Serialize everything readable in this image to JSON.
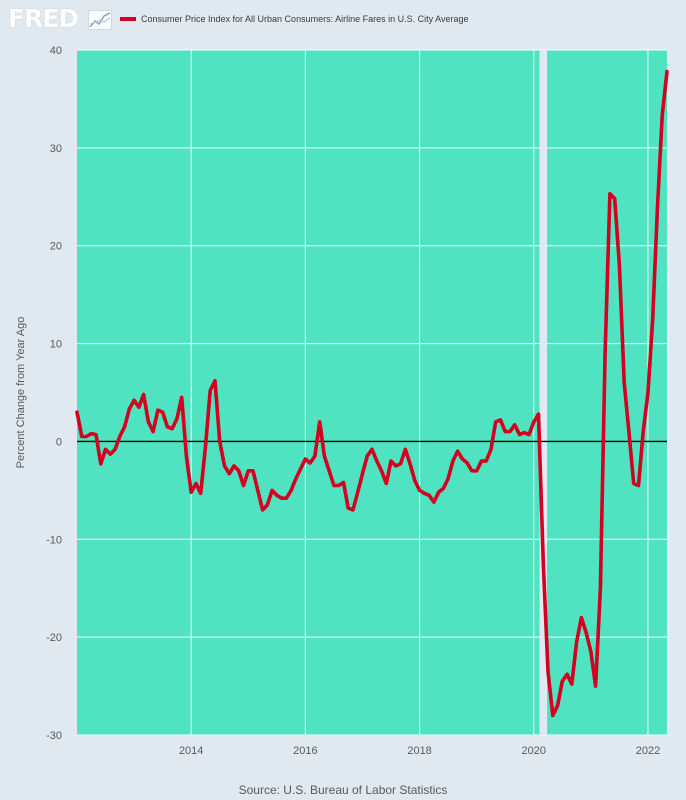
{
  "header": {
    "logo_text": "FRED",
    "logo_mark": "chart-line-icon"
  },
  "legend": {
    "label": "Consumer Price Index for All Urban Consumers: Airline Fares in U.S. City Average",
    "color": "#d3001f"
  },
  "source": "Source: U.S. Bureau of Labor Statistics",
  "colors": {
    "plot_background": "#50e3c2",
    "recession_band": "#e1e9f0",
    "page_background": "#e1e9f0",
    "series": "#d3001f",
    "zero_line": "#000000",
    "gridline": "#ffffff",
    "axis_text": "#595959"
  },
  "chart_data": {
    "type": "line",
    "title": "",
    "xlabel": "",
    "ylabel": "Percent Change from Year Ago",
    "ylim": [
      -30,
      40
    ],
    "xlim": [
      "2012-01",
      "2022-05"
    ],
    "x_ticks": [
      "2014",
      "2016",
      "2018",
      "2020",
      "2022"
    ],
    "y_ticks": [
      "40",
      "30",
      "20",
      "10",
      "0",
      "-10",
      "-20",
      "-30"
    ],
    "grid": true,
    "legend_position": "top",
    "shaded_periods": [
      {
        "start": "2020-02",
        "end": "2020-04",
        "label": "recession"
      }
    ],
    "reference_lines": [
      {
        "axis": "y",
        "value": 0
      }
    ],
    "series": [
      {
        "name": "Consumer Price Index for All Urban Consumers: Airline Fares in U.S. City Average",
        "color": "#d3001f",
        "points": [
          [
            "2012-01",
            3.0
          ],
          [
            "2012-02",
            0.5
          ],
          [
            "2012-03",
            0.5
          ],
          [
            "2012-04",
            0.8
          ],
          [
            "2012-05",
            0.7
          ],
          [
            "2012-06",
            -2.3
          ],
          [
            "2012-07",
            -0.8
          ],
          [
            "2012-08",
            -1.3
          ],
          [
            "2012-09",
            -0.8
          ],
          [
            "2012-10",
            0.5
          ],
          [
            "2012-11",
            1.5
          ],
          [
            "2012-12",
            3.3
          ],
          [
            "2013-01",
            4.2
          ],
          [
            "2013-02",
            3.5
          ],
          [
            "2013-03",
            4.8
          ],
          [
            "2013-04",
            2.0
          ],
          [
            "2013-05",
            1.0
          ],
          [
            "2013-06",
            3.2
          ],
          [
            "2013-07",
            3.0
          ],
          [
            "2013-08",
            1.5
          ],
          [
            "2013-09",
            1.3
          ],
          [
            "2013-10",
            2.3
          ],
          [
            "2013-11",
            4.5
          ],
          [
            "2013-12",
            -1.5
          ],
          [
            "2014-01",
            -5.2
          ],
          [
            "2014-02",
            -4.3
          ],
          [
            "2014-03",
            -5.3
          ],
          [
            "2014-04",
            -0.5
          ],
          [
            "2014-05",
            5.2
          ],
          [
            "2014-06",
            6.2
          ],
          [
            "2014-07",
            0.0
          ],
          [
            "2014-08",
            -2.5
          ],
          [
            "2014-09",
            -3.3
          ],
          [
            "2014-10",
            -2.5
          ],
          [
            "2014-11",
            -3.0
          ],
          [
            "2014-12",
            -4.5
          ],
          [
            "2015-01",
            -3.0
          ],
          [
            "2015-02",
            -3.0
          ],
          [
            "2015-03",
            -5.0
          ],
          [
            "2015-04",
            -7.0
          ],
          [
            "2015-05",
            -6.5
          ],
          [
            "2015-06",
            -5.0
          ],
          [
            "2015-07",
            -5.5
          ],
          [
            "2015-08",
            -5.8
          ],
          [
            "2015-09",
            -5.8
          ],
          [
            "2015-10",
            -5.0
          ],
          [
            "2015-11",
            -3.8
          ],
          [
            "2015-12",
            -2.8
          ],
          [
            "2016-01",
            -1.8
          ],
          [
            "2016-02",
            -2.2
          ],
          [
            "2016-03",
            -1.5
          ],
          [
            "2016-04",
            2.0
          ],
          [
            "2016-05",
            -1.5
          ],
          [
            "2016-06",
            -3.0
          ],
          [
            "2016-07",
            -4.5
          ],
          [
            "2016-08",
            -4.5
          ],
          [
            "2016-09",
            -4.2
          ],
          [
            "2016-10",
            -6.8
          ],
          [
            "2016-11",
            -7.0
          ],
          [
            "2016-12",
            -5.2
          ],
          [
            "2017-01",
            -3.3
          ],
          [
            "2017-02",
            -1.5
          ],
          [
            "2017-03",
            -0.8
          ],
          [
            "2017-04",
            -2.0
          ],
          [
            "2017-05",
            -3.0
          ],
          [
            "2017-06",
            -4.3
          ],
          [
            "2017-07",
            -2.0
          ],
          [
            "2017-08",
            -2.5
          ],
          [
            "2017-09",
            -2.3
          ],
          [
            "2017-10",
            -0.8
          ],
          [
            "2017-11",
            -2.3
          ],
          [
            "2017-12",
            -4.0
          ],
          [
            "2018-01",
            -5.0
          ],
          [
            "2018-02",
            -5.3
          ],
          [
            "2018-03",
            -5.5
          ],
          [
            "2018-04",
            -6.2
          ],
          [
            "2018-05",
            -5.2
          ],
          [
            "2018-06",
            -4.8
          ],
          [
            "2018-07",
            -3.8
          ],
          [
            "2018-08",
            -2.0
          ],
          [
            "2018-09",
            -1.0
          ],
          [
            "2018-10",
            -1.8
          ],
          [
            "2018-11",
            -2.2
          ],
          [
            "2018-12",
            -3.0
          ],
          [
            "2019-01",
            -3.0
          ],
          [
            "2019-02",
            -2.0
          ],
          [
            "2019-03",
            -2.0
          ],
          [
            "2019-04",
            -0.8
          ],
          [
            "2019-05",
            2.0
          ],
          [
            "2019-06",
            2.2
          ],
          [
            "2019-07",
            1.0
          ],
          [
            "2019-08",
            1.0
          ],
          [
            "2019-09",
            1.7
          ],
          [
            "2019-10",
            0.7
          ],
          [
            "2019-11",
            0.9
          ],
          [
            "2019-12",
            0.7
          ],
          [
            "2020-01",
            2.0
          ],
          [
            "2020-02",
            2.8
          ],
          [
            "2020-03",
            -12.5
          ],
          [
            "2020-04",
            -23.5
          ],
          [
            "2020-05",
            -28.0
          ],
          [
            "2020-06",
            -27.0
          ],
          [
            "2020-07",
            -24.5
          ],
          [
            "2020-08",
            -23.8
          ],
          [
            "2020-09",
            -24.8
          ],
          [
            "2020-10",
            -20.5
          ],
          [
            "2020-11",
            -18.0
          ],
          [
            "2020-12",
            -19.5
          ],
          [
            "2021-01",
            -21.5
          ],
          [
            "2021-02",
            -25.0
          ],
          [
            "2021-03",
            -15.0
          ],
          [
            "2021-04",
            9.0
          ],
          [
            "2021-05",
            25.3
          ],
          [
            "2021-06",
            24.8
          ],
          [
            "2021-07",
            18.0
          ],
          [
            "2021-08",
            6.0
          ],
          [
            "2021-09",
            1.0
          ],
          [
            "2021-10",
            -4.3
          ],
          [
            "2021-11",
            -4.5
          ],
          [
            "2021-12",
            1.0
          ],
          [
            "2022-01",
            5.0
          ],
          [
            "2022-02",
            12.5
          ],
          [
            "2022-03",
            24.0
          ],
          [
            "2022-04",
            33.3
          ],
          [
            "2022-05",
            37.8
          ]
        ]
      }
    ]
  }
}
